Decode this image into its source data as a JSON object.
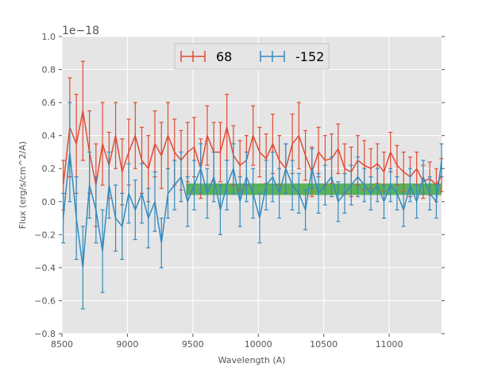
{
  "chart_data": {
    "type": "line",
    "title": "",
    "xlabel": "Wavelength (A)",
    "ylabel": "Flux (erg/s/cm^2/A)",
    "offset_label": "1e−18",
    "xlim": [
      8500,
      11400
    ],
    "ylim": [
      -0.8,
      1.0
    ],
    "xticks": [
      8500,
      9000,
      9500,
      10000,
      10500,
      11000
    ],
    "xtick_labels": [
      "8500",
      "9000",
      "9500",
      "10000",
      "10500",
      "11000"
    ],
    "yticks": [
      -0.8,
      -0.6,
      -0.4,
      -0.2,
      0.0,
      0.2,
      0.4,
      0.6,
      0.8,
      1.0
    ],
    "ytick_labels": [
      "−0.8",
      "−0.6",
      "−0.4",
      "−0.2",
      "0.0",
      "0.2",
      "0.4",
      "0.6",
      "0.8",
      "1.0"
    ],
    "grid": true,
    "legend_position": "top-center",
    "band": {
      "x_start": 9450,
      "x_end": 11400,
      "y_low": 0.04,
      "y_high": 0.11,
      "color": "#2ca02c"
    },
    "series": [
      {
        "name": "68",
        "color": "#e24a33",
        "x": [
          8510,
          8560,
          8610,
          8660,
          8710,
          8760,
          8810,
          8860,
          8910,
          8960,
          9010,
          9060,
          9110,
          9160,
          9210,
          9260,
          9310,
          9360,
          9410,
          9460,
          9510,
          9560,
          9610,
          9660,
          9710,
          9760,
          9810,
          9860,
          9910,
          9960,
          10010,
          10060,
          10110,
          10160,
          10210,
          10260,
          10310,
          10360,
          10410,
          10460,
          10510,
          10560,
          10610,
          10660,
          10710,
          10760,
          10810,
          10860,
          10910,
          10960,
          11010,
          11060,
          11110,
          11160,
          11210,
          11260,
          11310,
          11360,
          11400
        ],
        "y": [
          0.1,
          0.45,
          0.35,
          0.55,
          0.3,
          0.1,
          0.35,
          0.22,
          0.4,
          0.18,
          0.3,
          0.4,
          0.25,
          0.2,
          0.35,
          0.28,
          0.4,
          0.3,
          0.25,
          0.3,
          0.33,
          0.2,
          0.4,
          0.3,
          0.3,
          0.45,
          0.28,
          0.22,
          0.25,
          0.4,
          0.3,
          0.26,
          0.35,
          0.25,
          0.2,
          0.35,
          0.4,
          0.28,
          0.18,
          0.3,
          0.25,
          0.26,
          0.32,
          0.2,
          0.18,
          0.25,
          0.22,
          0.2,
          0.23,
          0.18,
          0.3,
          0.22,
          0.18,
          0.15,
          0.2,
          0.12,
          0.14,
          0.1,
          0.16
        ],
        "err": [
          0.15,
          0.3,
          0.3,
          0.3,
          0.25,
          0.25,
          0.25,
          0.2,
          0.2,
          0.2,
          0.2,
          0.2,
          0.2,
          0.2,
          0.2,
          0.2,
          0.2,
          0.2,
          0.18,
          0.18,
          0.18,
          0.18,
          0.18,
          0.18,
          0.18,
          0.2,
          0.18,
          0.15,
          0.15,
          0.18,
          0.15,
          0.15,
          0.18,
          0.15,
          0.15,
          0.18,
          0.2,
          0.15,
          0.15,
          0.15,
          0.15,
          0.15,
          0.15,
          0.15,
          0.15,
          0.15,
          0.15,
          0.12,
          0.12,
          0.12,
          0.12,
          0.12,
          0.12,
          0.12,
          0.1,
          0.1,
          0.1,
          0.1,
          0.1
        ]
      },
      {
        "name": "-152",
        "color": "#348abd",
        "x": [
          8510,
          8560,
          8610,
          8660,
          8710,
          8760,
          8810,
          8860,
          8910,
          8960,
          9010,
          9060,
          9110,
          9160,
          9210,
          9260,
          9310,
          9360,
          9410,
          9460,
          9510,
          9560,
          9610,
          9660,
          9710,
          9760,
          9810,
          9860,
          9910,
          9960,
          10010,
          10060,
          10110,
          10160,
          10210,
          10260,
          10310,
          10360,
          10410,
          10460,
          10510,
          10560,
          10610,
          10660,
          10710,
          10760,
          10810,
          10860,
          10910,
          10960,
          11010,
          11060,
          11110,
          11160,
          11210,
          11260,
          11310,
          11360,
          11400
        ],
        "y": [
          -0.1,
          0.3,
          -0.1,
          -0.4,
          0.1,
          -0.05,
          -0.3,
          0.1,
          -0.1,
          -0.15,
          0.05,
          -0.05,
          0.05,
          -0.1,
          0.0,
          -0.25,
          0.05,
          0.1,
          0.15,
          0.0,
          0.1,
          0.2,
          0.05,
          0.15,
          -0.05,
          0.1,
          0.2,
          0.0,
          0.15,
          0.05,
          -0.1,
          0.1,
          0.15,
          0.05,
          0.2,
          0.1,
          0.05,
          -0.05,
          0.2,
          0.05,
          0.1,
          0.15,
          0.0,
          0.05,
          0.1,
          0.15,
          0.1,
          0.05,
          0.1,
          0.0,
          0.1,
          0.05,
          -0.05,
          0.1,
          0.0,
          0.15,
          0.05,
          0.0,
          0.25
        ],
        "err": [
          0.15,
          0.3,
          0.25,
          0.25,
          0.2,
          0.2,
          0.25,
          0.2,
          0.2,
          0.2,
          0.18,
          0.18,
          0.18,
          0.18,
          0.18,
          0.15,
          0.15,
          0.15,
          0.15,
          0.15,
          0.15,
          0.15,
          0.15,
          0.15,
          0.15,
          0.15,
          0.15,
          0.15,
          0.15,
          0.15,
          0.15,
          0.15,
          0.15,
          0.15,
          0.15,
          0.15,
          0.12,
          0.12,
          0.12,
          0.12,
          0.12,
          0.12,
          0.12,
          0.12,
          0.12,
          0.12,
          0.1,
          0.1,
          0.1,
          0.1,
          0.1,
          0.1,
          0.1,
          0.1,
          0.1,
          0.1,
          0.1,
          0.1,
          0.1
        ]
      }
    ]
  }
}
